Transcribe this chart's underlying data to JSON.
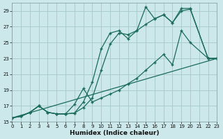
{
  "xlabel": "Humidex (Indice chaleur)",
  "bg_color": "#cce8ea",
  "grid_color": "#aaccce",
  "line_color": "#1a6b5a",
  "ylim": [
    15,
    30
  ],
  "xlim": [
    0,
    23
  ],
  "yticks": [
    15,
    17,
    19,
    21,
    23,
    25,
    27,
    29
  ],
  "xticks": [
    0,
    1,
    2,
    3,
    4,
    5,
    6,
    7,
    8,
    9,
    10,
    11,
    12,
    13,
    14,
    15,
    16,
    17,
    18,
    19,
    20,
    21,
    22,
    23
  ],
  "series": [
    {
      "x": [
        0,
        1,
        2,
        3,
        4,
        5,
        6,
        7,
        8,
        9,
        10,
        11,
        12,
        13,
        14,
        15,
        16,
        17,
        18,
        19,
        20,
        22,
        23
      ],
      "y": [
        15.5,
        15.7,
        16.2,
        17.0,
        16.2,
        16.0,
        16.0,
        16.1,
        16.8,
        18.0,
        21.5,
        24.8,
        26.2,
        26.0,
        26.5,
        27.3,
        28.0,
        28.5,
        27.5,
        29.0,
        29.2,
        23.0,
        23.0
      ]
    },
    {
      "x": [
        0,
        1,
        2,
        3,
        4,
        5,
        6,
        7,
        8,
        9,
        10,
        11,
        12,
        13,
        14,
        15,
        16,
        17,
        18,
        19,
        20,
        22,
        23
      ],
      "y": [
        15.5,
        15.7,
        16.2,
        17.0,
        16.2,
        16.0,
        16.0,
        16.1,
        17.5,
        20.0,
        24.2,
        26.2,
        26.5,
        25.5,
        26.5,
        29.5,
        28.0,
        28.5,
        27.5,
        29.3,
        29.3,
        23.0,
        23.0
      ]
    },
    {
      "x": [
        0,
        1,
        2,
        3,
        4,
        5,
        6,
        7,
        8,
        9,
        10,
        11,
        12,
        13,
        14,
        15,
        16,
        17,
        18,
        19,
        20,
        22,
        23
      ],
      "y": [
        15.5,
        15.7,
        16.2,
        17.0,
        16.2,
        16.0,
        16.0,
        17.2,
        19.2,
        17.5,
        18.0,
        18.5,
        19.0,
        19.8,
        20.5,
        21.5,
        22.5,
        23.5,
        22.2,
        26.5,
        25.0,
        23.0,
        23.0
      ]
    },
    {
      "x": [
        0,
        23
      ],
      "y": [
        15.5,
        23.0
      ]
    }
  ]
}
